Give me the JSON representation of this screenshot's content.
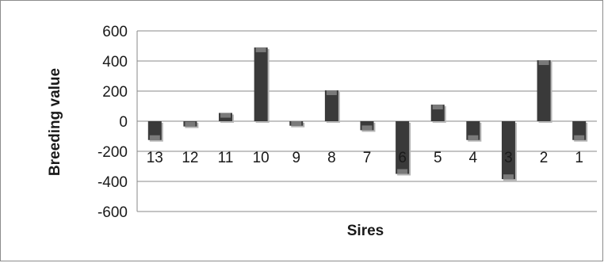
{
  "chart_data": {
    "type": "bar",
    "xlabel": "Sires",
    "ylabel": "Breeding value",
    "categories": [
      "13",
      "12",
      "11",
      "10",
      "9",
      "8",
      "7",
      "6",
      "5",
      "4",
      "3",
      "2",
      "1"
    ],
    "values": [
      -125,
      -35,
      55,
      490,
      -30,
      205,
      -60,
      -350,
      110,
      -125,
      -385,
      405,
      -125
    ],
    "ylim": [
      -600,
      600
    ],
    "yticks": [
      "600",
      "400",
      "200",
      "0",
      "-200",
      "-400",
      "-600"
    ],
    "ytick_values": [
      600,
      400,
      200,
      0,
      -200,
      -400,
      -600
    ],
    "grid": true,
    "legend": "none",
    "colors": {
      "bar": "#3a3a3a",
      "grid": "#8a8a8a"
    }
  }
}
